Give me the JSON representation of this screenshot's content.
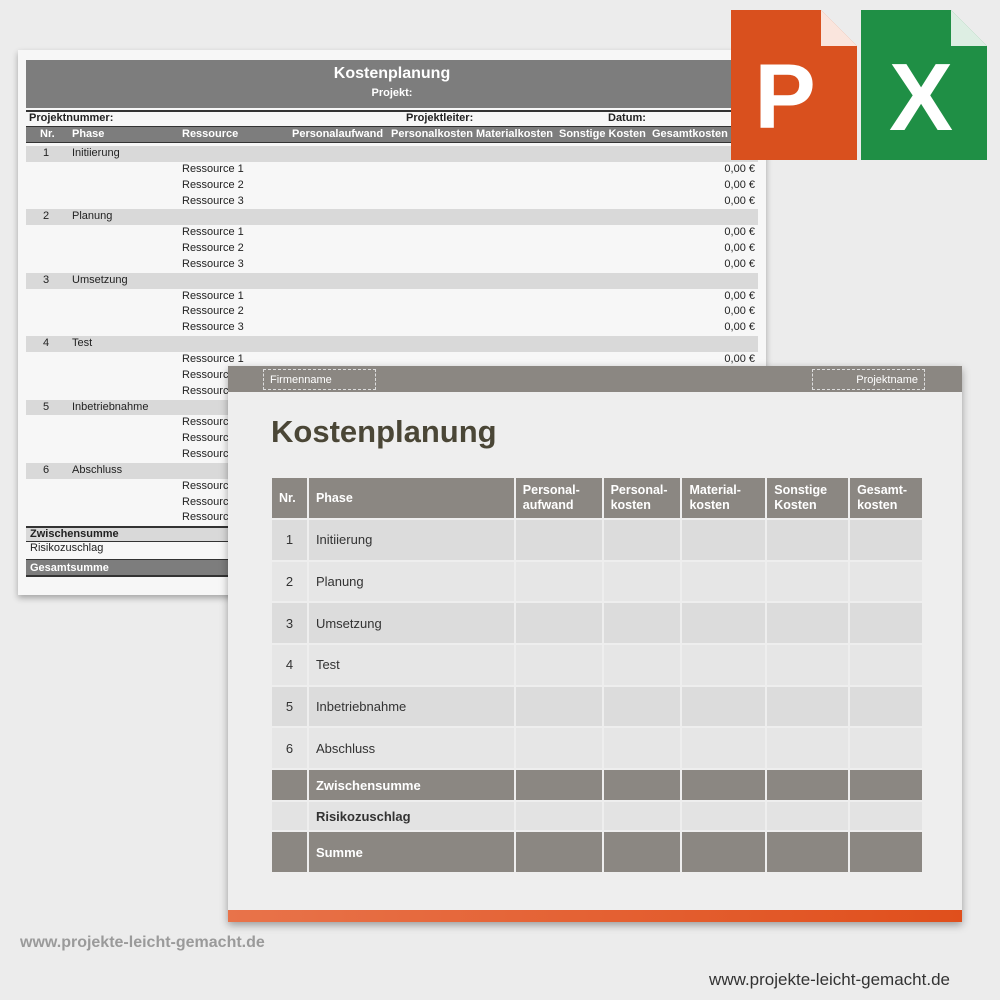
{
  "sheet": {
    "title": "Kostenplanung",
    "project": "Projekt:",
    "project_number": "Projektnummer:",
    "project_lead": "Projektleiter:",
    "date": "Datum:",
    "columns": [
      "Nr.",
      "Phase",
      "Ressource",
      "Personalaufwand",
      "Personalkosten",
      "Materialkosten",
      "Sonstige Kosten",
      "Gesamtkosten"
    ],
    "phases": [
      {
        "nr": "1",
        "name": "Initiierung"
      },
      {
        "nr": "2",
        "name": "Planung"
      },
      {
        "nr": "3",
        "name": "Umsetzung"
      },
      {
        "nr": "4",
        "name": "Test"
      },
      {
        "nr": "5",
        "name": "Inbetriebnahme"
      },
      {
        "nr": "6",
        "name": "Abschluss"
      }
    ],
    "resources": [
      "Ressource 1",
      "Ressource 2",
      "Ressource 3"
    ],
    "zero_value": "0,00 €",
    "subtotal": "Zwischensumme",
    "risk": "Risikozuschlag",
    "total": "Gesamtsumme"
  },
  "slide": {
    "company_placeholder": "Firmenname",
    "project_placeholder": "Projektname",
    "title": "Kostenplanung",
    "columns": [
      "Nr.",
      "Phase",
      "Personal-\naufwand",
      "Personal-\nkosten",
      "Material-\nkosten",
      "Sonstige\nKosten",
      "Gesamt-\nkosten"
    ],
    "rows": [
      {
        "nr": "1",
        "phase": "Initiierung"
      },
      {
        "nr": "2",
        "phase": "Planung"
      },
      {
        "nr": "3",
        "phase": "Umsetzung"
      },
      {
        "nr": "4",
        "phase": "Test"
      },
      {
        "nr": "5",
        "phase": "Inbetriebnahme"
      },
      {
        "nr": "6",
        "phase": "Abschluss"
      }
    ],
    "subtotal": "Zwischensumme",
    "risk": "Risikozuschlag",
    "total": "Summe"
  },
  "icons": {
    "powerpoint": {
      "letter": "P",
      "color": "#d9501e"
    },
    "excel": {
      "letter": "X",
      "color": "#1f8f45"
    }
  },
  "watermark": "www.projekte-leicht-gemacht.de",
  "footer_url": "www.projekte-leicht-gemacht.de"
}
